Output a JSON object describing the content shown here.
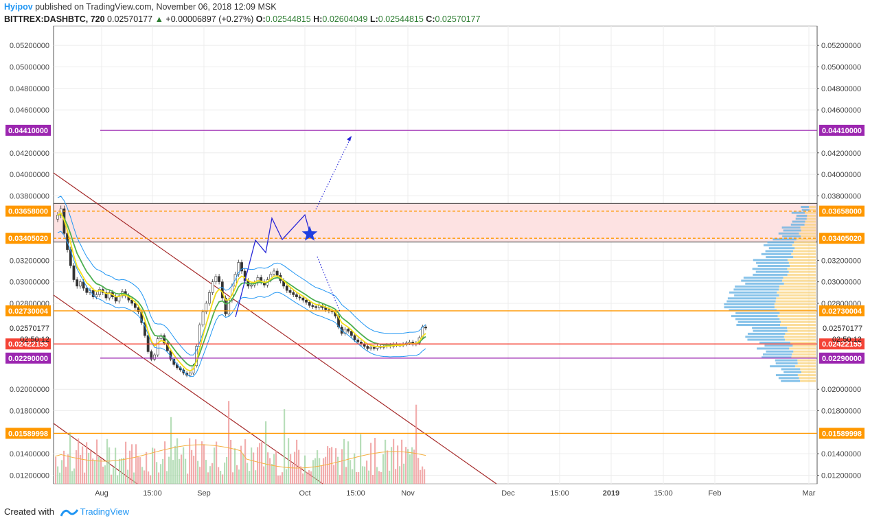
{
  "header": {
    "author": "Hyipov",
    "published": "published on TradingView.com, November 06, 2018 12:09 MSK",
    "symbol": "BITTREX:DASHBTC, 720",
    "last": "0.02570177",
    "change": "+0.00006897 (+0.27%)",
    "o_label": "O:",
    "o": "0.02544815",
    "h_label": "H:",
    "h": "0.02604049",
    "l_label": "L:",
    "l": "0.02544815",
    "c_label": "C:",
    "c": "0.02570177"
  },
  "footer": {
    "created_with": "Created with",
    "brand": "TradingView"
  },
  "colors": {
    "purple": "#9c27b0",
    "orange": "#ff9800",
    "red": "#f44336",
    "channel": "#a52a2a",
    "zone_fill": "#fde2e2",
    "blue_path": "#2727d8",
    "bb": "#2196f3",
    "ema_yellow": "#f7e118",
    "ema_green": "#4caf50",
    "grid": "#ececec",
    "vol_up": "#a5d6a7",
    "vol_down": "#ef9a9a"
  },
  "chart_data": {
    "type": "candlestick",
    "y_range": [
      0.0112,
      0.0538
    ],
    "y_ticks": [
      "0.05200000",
      "0.05000000",
      "0.04800000",
      "0.04600000",
      "0.04200000",
      "0.04000000",
      "0.03800000",
      "0.03200000",
      "0.03000000",
      "0.02800000",
      "0.02000000",
      "0.01800000",
      "0.01400000",
      "0.01200000"
    ],
    "x_ticks": [
      "Aug",
      "15:00",
      "Sep",
      "Oct",
      "15:00",
      "Nov",
      "Dec",
      "15:00",
      "2019",
      "15:00",
      "Feb",
      "Mar"
    ],
    "x_tick_bold": "2019",
    "levels": [
      {
        "label": "0.04410000",
        "value": 0.0441,
        "color": "purple"
      },
      {
        "label": "0.03658000",
        "value": 0.03658,
        "color": "orange"
      },
      {
        "label": "0.03405020",
        "value": 0.03405,
        "color": "orange"
      },
      {
        "label": "0.02730004",
        "value": 0.0273,
        "color": "orange"
      },
      {
        "label": "0.02422155",
        "value": 0.02422,
        "color": "red"
      },
      {
        "label": "0.02290000",
        "value": 0.0229,
        "color": "purple"
      },
      {
        "label": "0.01589998",
        "value": 0.0159,
        "color": "orange"
      }
    ],
    "last_price": {
      "label": "0.02570177",
      "countdown": "02:50:12",
      "value": 0.0257
    },
    "series_close": [
      0.0362,
      0.0368,
      0.0345,
      0.033,
      0.0315,
      0.0302,
      0.0296,
      0.03,
      0.0294,
      0.029,
      0.0292,
      0.0286,
      0.0288,
      0.0293,
      0.029,
      0.0285,
      0.029,
      0.0286,
      0.0282,
      0.0287,
      0.0291,
      0.0287,
      0.0283,
      0.028,
      0.0276,
      0.0272,
      0.0262,
      0.025,
      0.0235,
      0.0228,
      0.0232,
      0.0247,
      0.025,
      0.0243,
      0.0236,
      0.0228,
      0.0223,
      0.022,
      0.0218,
      0.0215,
      0.0213,
      0.0215,
      0.0222,
      0.024,
      0.026,
      0.0272,
      0.028,
      0.029,
      0.03,
      0.0305,
      0.03,
      0.0285,
      0.027,
      0.0283,
      0.0296,
      0.0307,
      0.0318,
      0.031,
      0.0301,
      0.0296,
      0.0297,
      0.0299,
      0.0304,
      0.03,
      0.0297,
      0.0302,
      0.0307,
      0.031,
      0.0306,
      0.0301,
      0.0296,
      0.0292,
      0.029,
      0.0288,
      0.0286,
      0.0285,
      0.0283,
      0.0281,
      0.0278,
      0.0277,
      0.0276,
      0.0278,
      0.0276,
      0.0274,
      0.0273,
      0.0272,
      0.0268,
      0.0258,
      0.0252,
      0.0256,
      0.0254,
      0.025,
      0.0246,
      0.0244,
      0.0242,
      0.024,
      0.0238,
      0.0239,
      0.0238,
      0.024,
      0.0239,
      0.024,
      0.0241,
      0.024,
      0.0242,
      0.0241,
      0.0241,
      0.0242,
      0.0243,
      0.0244,
      0.0242,
      0.0243,
      0.0248,
      0.0258,
      0.0257
    ]
  }
}
